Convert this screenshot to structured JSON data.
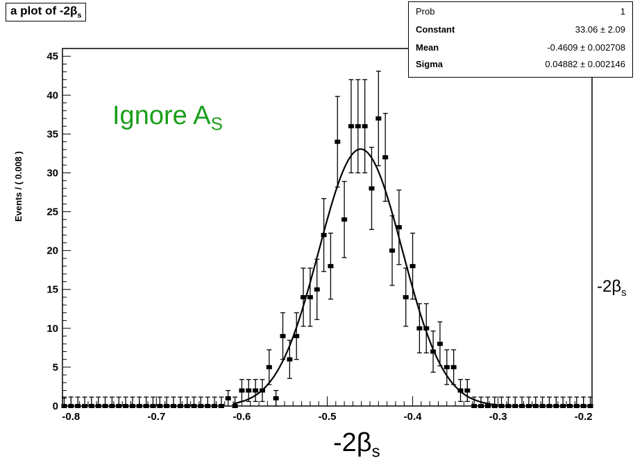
{
  "page": {
    "annotation": "Ignore A",
    "annotation_sub": "S",
    "side_label": "-2β",
    "side_label_sub": "s",
    "bottom_label": "-2β",
    "bottom_label_sub": "s"
  },
  "stats_box": {
    "rows": [
      {
        "key": "Prob",
        "value": "1"
      },
      {
        "key": "Constant",
        "value": "33.06 ±  2.09"
      },
      {
        "key": "Mean",
        "value": "-0.4609 ± 0.002708"
      },
      {
        "key": "Sigma",
        "value": "0.04882 ± 0.002146"
      }
    ]
  },
  "chart_data": {
    "type": "scatter",
    "title": "a plot of -2β",
    "title_sub": "s",
    "xlabel": "",
    "ylabel": "Events / ( 0.008 )",
    "xlim": [
      -0.81,
      -0.19
    ],
    "ylim": [
      0,
      46
    ],
    "x_ticks": [
      -0.8,
      -0.7,
      -0.6,
      -0.5,
      -0.4,
      -0.3,
      -0.2
    ],
    "x_tick_labels": [
      "-0.8",
      "-0.7",
      "-0.6",
      "-0.5",
      "-0.4",
      "-0.3",
      "-0.2"
    ],
    "y_ticks": [
      0,
      5,
      10,
      15,
      20,
      25,
      30,
      35,
      40,
      45
    ],
    "y_tick_labels": [
      "0",
      "5",
      "10",
      "15",
      "20",
      "25",
      "30",
      "35",
      "40",
      "45"
    ],
    "grid": false,
    "bin_width": 0.008,
    "bins": [
      {
        "x": -0.616,
        "y": 1
      },
      {
        "x": -0.608,
        "y": 0
      },
      {
        "x": -0.6,
        "y": 2
      },
      {
        "x": -0.592,
        "y": 2
      },
      {
        "x": -0.584,
        "y": 2
      },
      {
        "x": -0.576,
        "y": 2
      },
      {
        "x": -0.568,
        "y": 5
      },
      {
        "x": -0.56,
        "y": 1
      },
      {
        "x": -0.552,
        "y": 9
      },
      {
        "x": -0.544,
        "y": 6
      },
      {
        "x": -0.536,
        "y": 9
      },
      {
        "x": -0.528,
        "y": 14
      },
      {
        "x": -0.52,
        "y": 14
      },
      {
        "x": -0.512,
        "y": 15
      },
      {
        "x": -0.504,
        "y": 22
      },
      {
        "x": -0.496,
        "y": 18
      },
      {
        "x": -0.488,
        "y": 34
      },
      {
        "x": -0.48,
        "y": 24
      },
      {
        "x": -0.472,
        "y": 36
      },
      {
        "x": -0.464,
        "y": 36
      },
      {
        "x": -0.456,
        "y": 36
      },
      {
        "x": -0.448,
        "y": 28
      },
      {
        "x": -0.44,
        "y": 37
      },
      {
        "x": -0.432,
        "y": 32
      },
      {
        "x": -0.424,
        "y": 20
      },
      {
        "x": -0.416,
        "y": 23
      },
      {
        "x": -0.408,
        "y": 14
      },
      {
        "x": -0.4,
        "y": 18
      },
      {
        "x": -0.392,
        "y": 10
      },
      {
        "x": -0.384,
        "y": 10
      },
      {
        "x": -0.376,
        "y": 7
      },
      {
        "x": -0.368,
        "y": 8
      },
      {
        "x": -0.36,
        "y": 5
      },
      {
        "x": -0.352,
        "y": 5
      },
      {
        "x": -0.344,
        "y": 2
      },
      {
        "x": -0.336,
        "y": 2
      }
    ],
    "fit": {
      "type": "gaussian",
      "constant": 33.06,
      "mean": -0.4609,
      "sigma": 0.04882
    }
  }
}
